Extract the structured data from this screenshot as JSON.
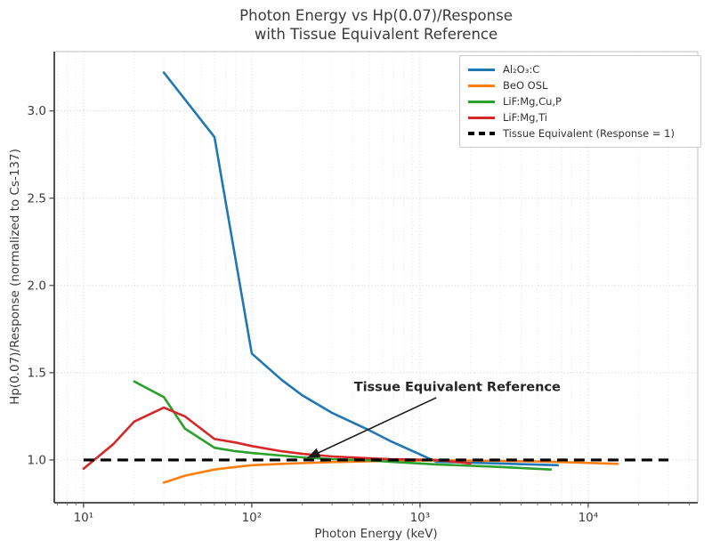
{
  "chart_data": {
    "type": "line",
    "title_line1": "Photon Energy vs Hp(0.07)/Response",
    "title_line2": "with Tissue Equivalent Reference",
    "xlabel": "Photon Energy (keV)",
    "ylabel": "Hp(0.07)/Response (normalized to Cs-137)",
    "x_scale": "log",
    "xlim": [
      6.7,
      44800
    ],
    "ylim": [
      0.755,
      3.34
    ],
    "x_ticks": [
      {
        "value": 10,
        "label": "10¹"
      },
      {
        "value": 100,
        "label": "10²"
      },
      {
        "value": 1000,
        "label": "10³"
      },
      {
        "value": 10000,
        "label": "10⁴"
      }
    ],
    "y_ticks": [
      {
        "value": 1.0,
        "label": "1.0"
      },
      {
        "value": 1.5,
        "label": "1.5"
      },
      {
        "value": 2.0,
        "label": "2.0"
      },
      {
        "value": 2.5,
        "label": "2.5"
      },
      {
        "value": 3.0,
        "label": "3.0"
      }
    ],
    "grid": {
      "major": true,
      "minor_vertical_log": true,
      "style": "dotted",
      "color": "#cccccc"
    },
    "legend_position": "upper right",
    "series": [
      {
        "name": "Al₂O₃:C",
        "color": "#1f77b4",
        "points": [
          [
            30,
            3.22
          ],
          [
            60,
            2.85
          ],
          [
            100,
            1.61
          ],
          [
            150,
            1.46
          ],
          [
            200,
            1.37
          ],
          [
            300,
            1.27
          ],
          [
            500,
            1.17
          ],
          [
            662,
            1.11
          ],
          [
            1250,
            0.99
          ],
          [
            2000,
            0.985
          ],
          [
            3000,
            0.98
          ],
          [
            6600,
            0.97
          ]
        ]
      },
      {
        "name": "BeO OSL",
        "color": "#ff7f0e",
        "points": [
          [
            30,
            0.87
          ],
          [
            40,
            0.91
          ],
          [
            60,
            0.945
          ],
          [
            80,
            0.96
          ],
          [
            100,
            0.97
          ],
          [
            150,
            0.978
          ],
          [
            200,
            0.982
          ],
          [
            300,
            0.988
          ],
          [
            500,
            0.992
          ],
          [
            662,
            0.995
          ],
          [
            1250,
            0.998
          ],
          [
            3000,
            0.995
          ],
          [
            6000,
            0.99
          ],
          [
            15000,
            0.978
          ]
        ]
      },
      {
        "name": "LiF:Mg,Cu,P",
        "color": "#2ca02c",
        "points": [
          [
            20,
            1.45
          ],
          [
            30,
            1.36
          ],
          [
            40,
            1.18
          ],
          [
            60,
            1.07
          ],
          [
            80,
            1.05
          ],
          [
            100,
            1.04
          ],
          [
            150,
            1.025
          ],
          [
            200,
            1.015
          ],
          [
            300,
            1.005
          ],
          [
            500,
            0.998
          ],
          [
            662,
            0.99
          ],
          [
            1250,
            0.975
          ],
          [
            3000,
            0.96
          ],
          [
            6000,
            0.945
          ]
        ]
      },
      {
        "name": "LiF:Mg,Ti",
        "color": "#d62728",
        "points": [
          [
            10,
            0.95
          ],
          [
            15,
            1.09
          ],
          [
            20,
            1.22
          ],
          [
            30,
            1.3
          ],
          [
            40,
            1.25
          ],
          [
            60,
            1.12
          ],
          [
            80,
            1.1
          ],
          [
            100,
            1.08
          ],
          [
            150,
            1.05
          ],
          [
            200,
            1.035
          ],
          [
            300,
            1.02
          ],
          [
            500,
            1.01
          ],
          [
            662,
            1.005
          ],
          [
            1250,
            1.0
          ],
          [
            2000,
            0.98
          ]
        ]
      }
    ],
    "reference_line": {
      "label": "Tissue Equivalent (Response = 1)",
      "y": 1.0,
      "x_start": 10,
      "x_end": 30000,
      "color": "#000000",
      "style": "dashed"
    },
    "annotation": {
      "text": "Tissue Equivalent Reference",
      "target_xy": [
        210,
        1.0
      ],
      "arrow_start_xy": [
        1250,
        1.357
      ],
      "text_xy": [
        405,
        1.42
      ]
    }
  }
}
